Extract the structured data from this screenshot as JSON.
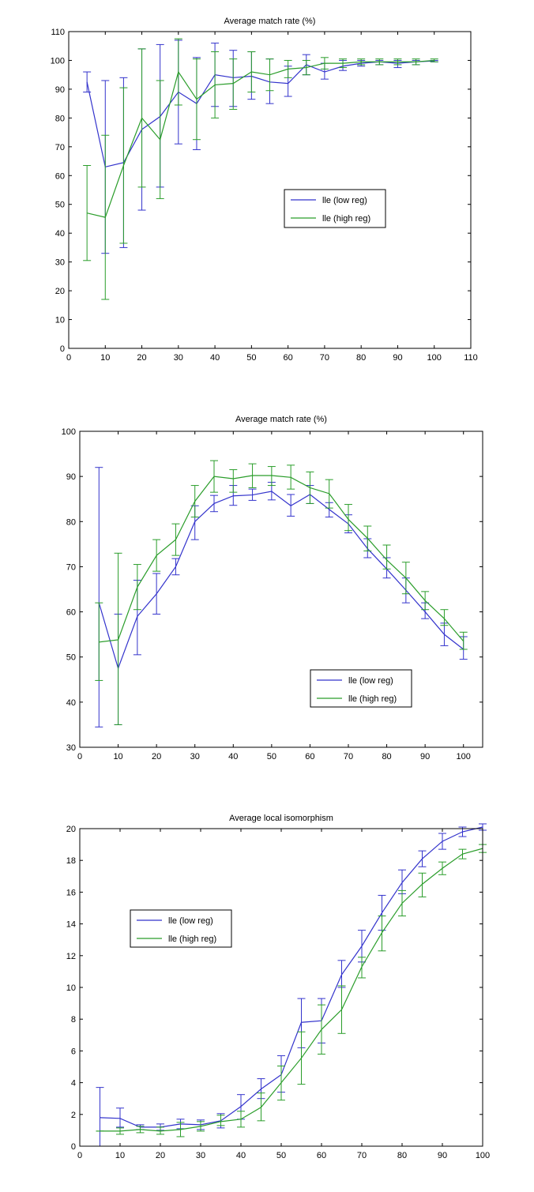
{
  "colors": {
    "low": "#3333cc",
    "high": "#2a9d2a",
    "axis": "#000000"
  },
  "legend": {
    "low_label": "lle (low reg)",
    "high_label": "lle (high reg)"
  },
  "chart_data": [
    {
      "type": "line",
      "title": "Average match rate (%)",
      "xlim": [
        0,
        110
      ],
      "ylim": [
        0,
        110
      ],
      "xticks": [
        0,
        10,
        20,
        30,
        40,
        50,
        60,
        70,
        80,
        90,
        100,
        110
      ],
      "yticks": [
        0,
        10,
        20,
        30,
        40,
        50,
        60,
        70,
        80,
        90,
        100,
        110
      ],
      "legend_position": "center-right",
      "x": [
        5,
        10,
        15,
        20,
        25,
        30,
        35,
        40,
        45,
        50,
        55,
        60,
        65,
        70,
        75,
        80,
        85,
        90,
        95,
        100
      ],
      "series": [
        {
          "name": "lle (low reg)",
          "key": "low",
          "values": [
            92.5,
            63,
            64.5,
            76,
            80.5,
            89,
            85,
            95,
            94,
            94.5,
            92.5,
            92,
            98.5,
            96,
            98,
            99,
            99.5,
            99,
            99.5,
            99.8
          ],
          "err_low": [
            89,
            33,
            35,
            48,
            56,
            71,
            69,
            84,
            84,
            86.5,
            85,
            87.5,
            95,
            93.5,
            96.5,
            98,
            98.5,
            97.5,
            98.5,
            99.5
          ],
          "err_high": [
            96,
            93,
            94,
            104,
            105.5,
            107,
            101,
            106,
            103.5,
            103,
            100.5,
            98,
            102,
            99,
            100,
            100,
            100,
            100,
            100,
            100
          ]
        },
        {
          "name": "lle (high reg)",
          "key": "high",
          "values": [
            47,
            45.5,
            63.5,
            80,
            72.5,
            96,
            86.5,
            91.5,
            92,
            96,
            95,
            97,
            97.5,
            99,
            99,
            99.5,
            99.5,
            99.5,
            99.5,
            100
          ],
          "err_low": [
            30.5,
            17,
            36.5,
            56,
            52,
            84.5,
            72.5,
            80,
            83,
            89,
            89.5,
            94,
            95,
            97,
            97.5,
            98.5,
            98.5,
            98.5,
            98.5,
            99.5
          ],
          "err_high": [
            63.5,
            74,
            90.5,
            104,
            93,
            107.5,
            100.5,
            103,
            100.5,
            103,
            100.5,
            100,
            100,
            101,
            100.5,
            100.5,
            100.5,
            100.5,
            100.5,
            100.5
          ]
        }
      ]
    },
    {
      "type": "line",
      "title": "Average match rate (%)",
      "xlim": [
        0,
        105
      ],
      "ylim": [
        30,
        100
      ],
      "xticks": [
        0,
        10,
        20,
        30,
        40,
        50,
        60,
        70,
        80,
        90,
        100
      ],
      "yticks": [
        30,
        40,
        50,
        60,
        70,
        80,
        90,
        100
      ],
      "legend_position": "lower-right",
      "x": [
        5,
        10,
        15,
        20,
        25,
        30,
        35,
        40,
        45,
        50,
        55,
        60,
        65,
        70,
        75,
        80,
        85,
        90,
        95,
        100
      ],
      "series": [
        {
          "name": "lle (low reg)",
          "key": "low",
          "values": [
            62,
            47.5,
            59,
            64,
            70,
            80,
            84,
            85.7,
            85.9,
            86.7,
            83.5,
            86,
            82.7,
            79.5,
            74,
            69.5,
            64.8,
            60,
            55,
            51.7
          ],
          "err_low": [
            34.5,
            35,
            50.5,
            59.5,
            68.2,
            76,
            82.2,
            83.6,
            84.7,
            84.8,
            81.2,
            84,
            81,
            77.5,
            72,
            67.5,
            62,
            58.5,
            52.5,
            49.5
          ],
          "err_high": [
            92,
            59.5,
            67,
            68.5,
            71.8,
            83.5,
            85.8,
            88,
            87.2,
            88.7,
            86,
            88,
            84.2,
            81.5,
            76.2,
            72,
            67.5,
            62,
            57.5,
            54.5
          ]
        },
        {
          "name": "lle (high reg)",
          "key": "high",
          "values": [
            53.3,
            53.8,
            65.5,
            72.5,
            76,
            84.5,
            90,
            89.5,
            90.2,
            90.2,
            89.8,
            87.5,
            86.2,
            80.5,
            76.3,
            71.5,
            67.5,
            62.5,
            58.5,
            53.5
          ],
          "err_low": [
            44.8,
            35,
            60.5,
            69,
            72.5,
            81,
            86.5,
            86.5,
            87.5,
            88,
            87.2,
            84,
            83,
            78,
            73.5,
            69.5,
            64,
            60.5,
            57,
            51.7
          ],
          "err_high": [
            62,
            73,
            70.5,
            76,
            79.5,
            88,
            93.5,
            91.5,
            92.8,
            92.2,
            92.5,
            91,
            89.3,
            83.8,
            79,
            74.8,
            71,
            64.5,
            60.5,
            55.5
          ]
        }
      ]
    },
    {
      "type": "line",
      "title": "Average local isomorphism",
      "xlim": [
        0,
        100
      ],
      "ylim": [
        0,
        20
      ],
      "xticks": [
        0,
        10,
        20,
        30,
        40,
        50,
        60,
        70,
        80,
        90,
        100
      ],
      "yticks": [
        0,
        2,
        4,
        6,
        8,
        10,
        12,
        14,
        16,
        18,
        20
      ],
      "legend_position": "upper-left",
      "x": [
        5,
        10,
        15,
        20,
        25,
        30,
        35,
        40,
        45,
        50,
        55,
        60,
        65,
        70,
        75,
        80,
        85,
        90,
        95,
        100
      ],
      "series": [
        {
          "name": "lle (low reg)",
          "key": "low",
          "values": [
            1.8,
            1.75,
            1.2,
            1.2,
            1.4,
            1.35,
            1.6,
            2.5,
            3.6,
            4.5,
            7.8,
            7.9,
            10.8,
            12.6,
            14.7,
            16.6,
            18.1,
            19.2,
            19.8,
            20.1
          ],
          "err_low": [
            0,
            1.2,
            1.05,
            1.0,
            1.1,
            1.05,
            1.15,
            1.7,
            3.0,
            3.4,
            6.2,
            6.5,
            10.0,
            11.6,
            13.6,
            15.9,
            17.6,
            18.7,
            19.5,
            19.9
          ],
          "err_high": [
            3.7,
            2.4,
            1.35,
            1.4,
            1.7,
            1.65,
            2.05,
            3.25,
            4.25,
            5.7,
            9.3,
            9.3,
            11.7,
            13.6,
            15.8,
            17.4,
            18.6,
            19.7,
            20.1,
            20.3
          ]
        },
        {
          "name": "lle (high reg)",
          "key": "high",
          "values": [
            0.95,
            0.95,
            1.05,
            0.95,
            1.05,
            1.25,
            1.55,
            1.7,
            2.45,
            4.0,
            5.55,
            7.35,
            8.6,
            11.3,
            13.45,
            15.3,
            16.5,
            17.5,
            18.4,
            18.75
          ],
          "err_low": [
            0.95,
            0.75,
            0.85,
            0.75,
            0.6,
            0.95,
            1.3,
            1.2,
            1.6,
            2.9,
            3.9,
            5.8,
            7.1,
            10.6,
            12.3,
            14.5,
            15.7,
            17.1,
            18.1,
            18.5
          ],
          "err_high": [
            0.95,
            1.15,
            1.25,
            1.2,
            1.5,
            1.55,
            1.95,
            2.2,
            3.35,
            5.05,
            7.2,
            8.9,
            10.1,
            11.9,
            14.5,
            16.1,
            17.2,
            17.9,
            18.7,
            19.0
          ]
        }
      ]
    }
  ]
}
